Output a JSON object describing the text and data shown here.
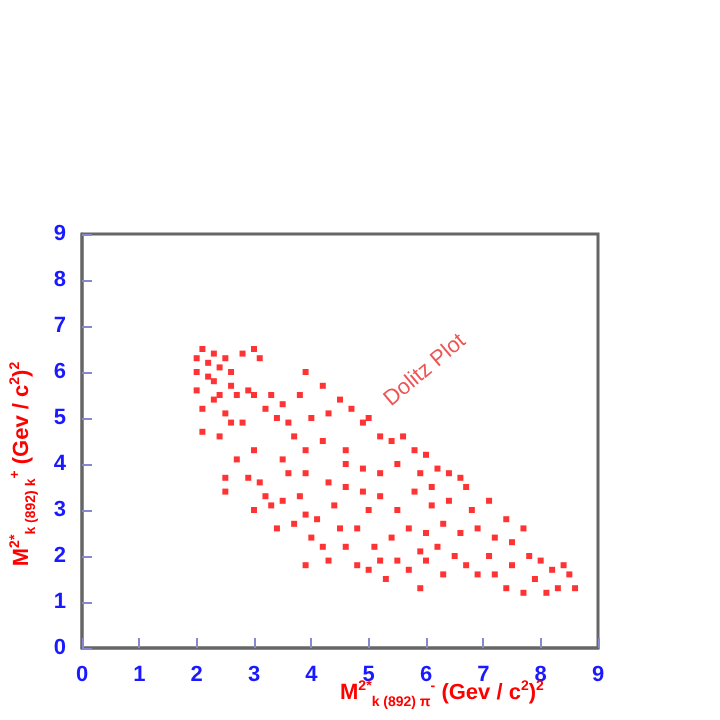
{
  "chart_data": {
    "type": "scatter",
    "xlabel": "M$^{2}$$^{*}$$_{k (892) π}$$^{-}$ (Gev / c$^{2}$)$^{2}$",
    "ylabel": "M$^{2}$$^{*}$$_{k (892) k}$$^{+}$ (Gev / c$^{2}$)$^{2}$",
    "annotations": [
      "Dolitz Plot"
    ],
    "xlim": [
      0,
      9
    ],
    "ylim": [
      0,
      9
    ],
    "xticks": [
      0,
      1,
      2,
      3,
      4,
      5,
      6,
      7,
      8,
      9
    ],
    "yticks": [
      0,
      1,
      2,
      3,
      4,
      5,
      6,
      7,
      8,
      9
    ],
    "grid": false,
    "marker": "square",
    "series": [
      {
        "color": "#ff0000",
        "x": [
          2.0,
          2.1,
          2.2,
          2.3,
          2.4,
          2.5,
          2.0,
          2.2,
          2.6,
          2.8,
          3.0,
          3.1,
          2.6,
          2.9,
          3.0,
          2.7,
          2.0,
          2.1,
          2.3,
          2.5,
          2.6,
          2.1,
          2.4,
          2.8,
          3.2,
          3.4,
          3.6,
          3.5,
          3.3,
          3.8,
          3.9,
          4.2,
          4.5,
          4.3,
          4.0,
          3.7,
          3.9,
          4.2,
          4.6,
          4.9,
          5.0,
          4.7,
          5.2,
          5.4,
          5.6,
          5.8,
          6.0,
          6.2,
          6.4,
          6.6,
          6.7,
          5.5,
          5.2,
          4.9,
          4.6,
          4.3,
          3.9,
          3.5,
          3.0,
          2.7,
          2.5,
          2.9,
          3.1,
          2.5,
          3.2,
          3.5,
          3.8,
          3.0,
          3.3,
          3.4,
          3.7,
          3.9,
          4.0,
          4.2,
          3.9,
          4.3,
          4.6,
          4.8,
          5.0,
          5.2,
          4.9,
          5.5,
          5.8,
          6.1,
          6.4,
          6.8,
          7.1,
          7.4,
          7.7,
          7.5,
          7.2,
          6.9,
          6.6,
          6.3,
          6.0,
          5.7,
          5.4,
          5.1,
          4.8,
          5.0,
          5.2,
          5.3,
          5.5,
          5.7,
          5.9,
          6.0,
          6.3,
          6.5,
          6.7,
          6.9,
          7.1,
          7.2,
          7.4,
          7.5,
          7.7,
          7.9,
          8.0,
          8.1,
          8.2,
          8.4,
          8.3,
          8.6,
          7.8,
          8.5,
          5.9,
          6.2,
          4.5,
          4.1,
          4.4,
          3.6,
          4.6,
          5.9,
          6.1,
          2.3,
          2.4
        ],
        "values": [
          6.3,
          6.5,
          6.2,
          6.4,
          6.1,
          6.3,
          6.0,
          5.9,
          6.0,
          6.4,
          6.5,
          6.3,
          5.7,
          5.6,
          5.5,
          5.5,
          5.6,
          5.2,
          5.4,
          5.1,
          4.9,
          4.7,
          4.6,
          4.9,
          5.2,
          5.0,
          4.9,
          5.3,
          5.5,
          5.5,
          6.0,
          5.7,
          5.4,
          5.1,
          5.0,
          4.6,
          4.3,
          4.5,
          4.3,
          4.9,
          5.0,
          5.2,
          4.6,
          4.5,
          4.6,
          4.3,
          4.2,
          3.9,
          3.8,
          3.7,
          3.5,
          4.0,
          3.8,
          3.9,
          4.0,
          3.6,
          3.8,
          4.1,
          4.3,
          4.1,
          3.7,
          3.7,
          3.6,
          3.4,
          3.3,
          3.2,
          3.3,
          3.0,
          3.1,
          2.6,
          2.7,
          2.9,
          2.4,
          2.2,
          1.8,
          1.9,
          2.2,
          2.6,
          3.0,
          3.3,
          3.4,
          3.0,
          3.4,
          3.1,
          3.2,
          3.0,
          3.2,
          2.8,
          2.6,
          2.3,
          2.4,
          2.6,
          2.5,
          2.7,
          2.5,
          2.6,
          2.4,
          2.2,
          1.8,
          1.7,
          1.9,
          1.5,
          1.9,
          1.7,
          1.3,
          1.9,
          1.6,
          2.0,
          1.8,
          1.6,
          2.0,
          1.6,
          1.3,
          1.8,
          1.2,
          1.5,
          1.9,
          1.2,
          1.7,
          1.8,
          1.3,
          1.3,
          2.0,
          1.6,
          2.1,
          2.2,
          2.6,
          2.8,
          3.1,
          3.8,
          3.5,
          3.8,
          3.5,
          5.8,
          5.5
        ]
      }
    ]
  }
}
